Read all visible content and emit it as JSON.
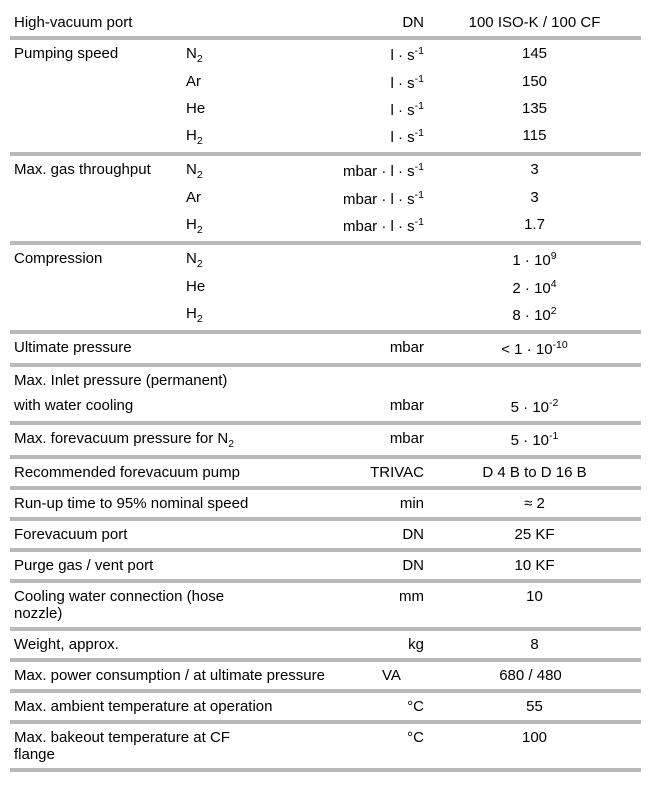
{
  "sections": [
    {
      "type": "row",
      "label": "High-vacuum port",
      "unit": "DN",
      "value": "100 ISO-K / 100 CF"
    },
    {
      "type": "sep"
    },
    {
      "type": "row",
      "label": "Pumping speed",
      "gas": "N<sub>2</sub>",
      "unit": "l · s<sup>-1</sup>",
      "value": "145"
    },
    {
      "type": "row",
      "gas": "Ar",
      "unit": "l · s<sup>-1</sup>",
      "value": "150"
    },
    {
      "type": "row",
      "gas": "He",
      "unit": "l · s<sup>-1</sup>",
      "value": "135"
    },
    {
      "type": "row",
      "gas": "H<sub>2</sub>",
      "unit": "l · s<sup>-1</sup>",
      "value": "115"
    },
    {
      "type": "sep"
    },
    {
      "type": "row",
      "label": "Max. gas throughput",
      "gas": "N<sub>2</sub>",
      "unit": "mbar · l · s<sup>-1</sup>",
      "value": "3"
    },
    {
      "type": "row",
      "gas": "Ar",
      "unit": "mbar · l · s<sup>-1</sup>",
      "value": "3"
    },
    {
      "type": "row",
      "gas": "H<sub>2</sub>",
      "unit": "mbar · l · s<sup>-1</sup>",
      "value": "1.7"
    },
    {
      "type": "sep"
    },
    {
      "type": "row",
      "label": "Compression",
      "gas": "N<sub>2</sub>",
      "value": "1 · 10<sup>9</sup>"
    },
    {
      "type": "row",
      "gas": "He",
      "value": "2 · 10<sup>4</sup>"
    },
    {
      "type": "row",
      "gas": "H<sub>2</sub>",
      "value": "8 · 10<sup>2</sup>"
    },
    {
      "type": "sep"
    },
    {
      "type": "row",
      "wide": true,
      "label": "Ultimate pressure",
      "unit": "mbar",
      "value": "&lt; 1 · 10<sup>-10</sup>"
    },
    {
      "type": "sep"
    },
    {
      "type": "multirow",
      "lines": [
        "Max. Inlet pressure (permanent)",
        "with water cooling"
      ],
      "unit": "mbar",
      "value": "5 · 10<sup>-2</sup>"
    },
    {
      "type": "sep"
    },
    {
      "type": "row",
      "wide": true,
      "label": "Max. forevacuum pressure for N<sub>2</sub>",
      "unit": "mbar",
      "value": "5 · 10<sup>-1</sup>"
    },
    {
      "type": "sep"
    },
    {
      "type": "row",
      "wide": true,
      "label": "Recommended forevacuum pump",
      "unit": "TRIVAC",
      "value": "D 4 B to D 16 B"
    },
    {
      "type": "sep"
    },
    {
      "type": "row",
      "wide": true,
      "label": "Run-up time to 95% nominal speed",
      "unit": "min",
      "value": "&#8776; 2"
    },
    {
      "type": "sep"
    },
    {
      "type": "row",
      "wide": true,
      "label": "Forevacuum port",
      "unit": "DN",
      "value": "25 KF"
    },
    {
      "type": "sep"
    },
    {
      "type": "row",
      "wide": true,
      "label": "Purge gas / vent port",
      "unit": "DN",
      "value": "10 KF"
    },
    {
      "type": "sep"
    },
    {
      "type": "row",
      "wide": true,
      "label": "Cooling water connection (hose nozzle)",
      "unit": "mm",
      "value": "10"
    },
    {
      "type": "sep"
    },
    {
      "type": "row",
      "wide": true,
      "label": "Weight, approx.",
      "unit": "kg",
      "value": "8"
    },
    {
      "type": "sep"
    },
    {
      "type": "row",
      "wide": true,
      "label": "Max. power consumption / at ultimate pressure",
      "labelWidth": "368px",
      "unit": "VA",
      "unitWidth": "42px",
      "value": "680 / 480"
    },
    {
      "type": "sep"
    },
    {
      "type": "row",
      "wide": true,
      "label": "Max. ambient temperature at operation",
      "unit": "°C",
      "value": "55"
    },
    {
      "type": "sep"
    },
    {
      "type": "row",
      "wide": true,
      "label": "Max. bakeout temperature at CF flange",
      "unit": "°C",
      "value": "100"
    },
    {
      "type": "sep"
    }
  ],
  "style": {
    "separator_color": "#b9b9b9",
    "text_color": "#000000",
    "background_color": "#ffffff",
    "font_size_pt": 11
  }
}
